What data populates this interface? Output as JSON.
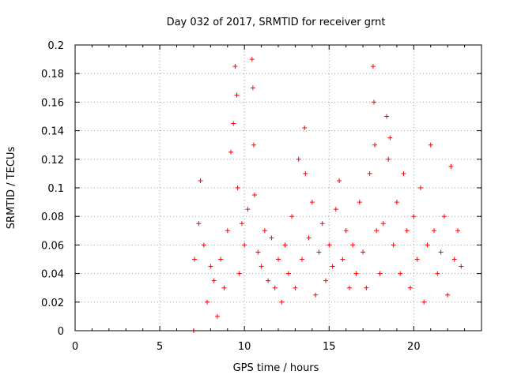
{
  "chart_data": {
    "type": "scatter",
    "title": "Day 032 of 2017, SRMTID for receiver grnt",
    "xlabel": "GPS time / hours",
    "ylabel": "SRMTID / TECUs",
    "xlim": [
      0,
      24
    ],
    "ylim": [
      0,
      0.2
    ],
    "xticks": [
      0,
      5,
      10,
      15,
      20
    ],
    "xtick_labels": [
      "0",
      "5",
      "10",
      "15",
      "20"
    ],
    "yticks": [
      0,
      0.02,
      0.04,
      0.06,
      0.08,
      0.1,
      0.12,
      0.14,
      0.16,
      0.18,
      0.2
    ],
    "ytick_labels": [
      "0",
      "0.02",
      "0.04",
      "0.06",
      "0.08",
      "0.1",
      "0.12",
      "0.14",
      "0.16",
      "0.18",
      "0.2"
    ],
    "grid": true,
    "marker": "+",
    "color": "#ff0000",
    "series": [
      {
        "x": [
          7.0,
          7.05,
          7.3,
          7.4,
          7.6,
          7.8,
          8.0,
          8.2,
          8.4,
          8.6,
          8.8,
          9.0,
          9.2,
          9.35,
          9.45,
          9.55,
          9.6,
          9.7,
          9.85,
          10.0,
          10.2,
          10.45,
          10.5,
          10.55,
          10.6,
          10.8,
          11.0,
          11.2,
          11.4,
          11.6,
          11.8,
          12.0,
          12.2,
          12.4,
          12.6,
          12.8,
          13.0,
          13.2,
          13.4,
          13.55,
          13.6,
          13.8,
          14.0,
          14.2,
          14.4,
          14.6,
          14.8,
          15.0,
          15.2,
          15.4,
          15.6,
          15.8,
          16.0,
          16.2,
          16.4,
          16.6,
          16.8,
          17.0,
          17.2,
          17.4,
          17.6,
          17.65,
          17.7,
          17.8,
          18.0,
          18.2,
          18.4,
          18.5,
          18.6,
          18.8,
          19.0,
          19.2,
          19.4,
          19.6,
          19.8,
          20.0,
          20.2,
          20.4,
          20.6,
          20.8,
          21.0,
          21.2,
          21.4,
          21.6,
          21.8,
          22.0,
          22.2,
          22.4,
          22.6,
          22.8
        ],
        "y": [
          0.0,
          0.05,
          0.075,
          0.105,
          0.06,
          0.02,
          0.045,
          0.035,
          0.01,
          0.05,
          0.03,
          0.07,
          0.125,
          0.145,
          0.185,
          0.165,
          0.1,
          0.04,
          0.075,
          0.06,
          0.085,
          0.19,
          0.17,
          0.13,
          0.095,
          0.055,
          0.045,
          0.07,
          0.035,
          0.065,
          0.03,
          0.05,
          0.02,
          0.06,
          0.04,
          0.08,
          0.03,
          0.12,
          0.05,
          0.142,
          0.11,
          0.065,
          0.09,
          0.025,
          0.055,
          0.075,
          0.035,
          0.06,
          0.045,
          0.085,
          0.105,
          0.05,
          0.07,
          0.03,
          0.06,
          0.04,
          0.09,
          0.055,
          0.03,
          0.11,
          0.185,
          0.16,
          0.13,
          0.07,
          0.04,
          0.075,
          0.15,
          0.12,
          0.135,
          0.06,
          0.09,
          0.04,
          0.11,
          0.07,
          0.03,
          0.08,
          0.05,
          0.1,
          0.02,
          0.06,
          0.13,
          0.07,
          0.04,
          0.055,
          0.08,
          0.025,
          0.115,
          0.05,
          0.07,
          0.045
        ]
      }
    ]
  }
}
